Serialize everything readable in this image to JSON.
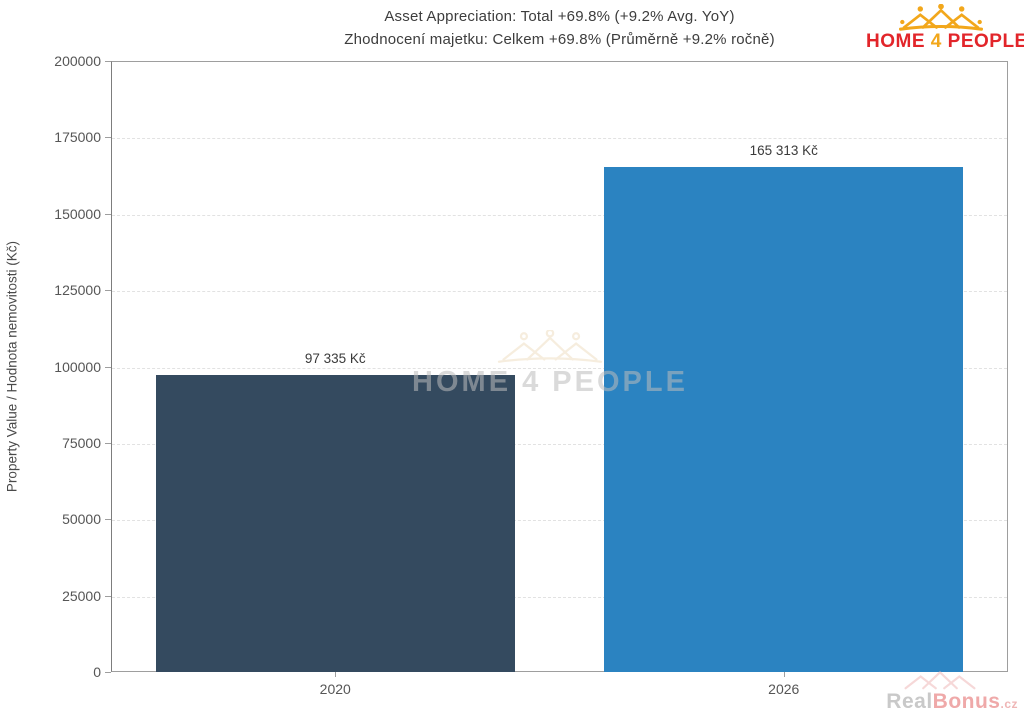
{
  "chart_data": {
    "type": "bar",
    "title": "Asset Appreciation: Total +69.8% (+9.2% Avg. YoY)",
    "subtitle": "Zhodnocení majetku: Celkem +69.8% (Průměrně +9.2% ročně)",
    "categories": [
      "2020",
      "2026"
    ],
    "values": [
      97335,
      165313
    ],
    "bar_labels": [
      "97 335 Kč",
      "165 313 Kč"
    ],
    "bar_colors": [
      "#344a5f",
      "#2b83c1"
    ],
    "xlabel": "",
    "ylabel": "Property Value / Hodnota nemovitosti (Kč)",
    "ylim": [
      0,
      200000
    ],
    "yticks": [
      0,
      25000,
      50000,
      75000,
      100000,
      125000,
      150000,
      175000,
      200000
    ],
    "grid": "horizontal-dashed",
    "legend": "none"
  },
  "branding": {
    "home": "HOME",
    "four": "4",
    "people": "PEOPLE",
    "red": "#e2252a",
    "gold": "#f2a71b"
  },
  "watermarks": {
    "center_text": "HOME 4 PEOPLE",
    "bottom_right_real": "Real",
    "bottom_right_bonus": "Bonus",
    "bottom_right_tld": ".cz"
  }
}
